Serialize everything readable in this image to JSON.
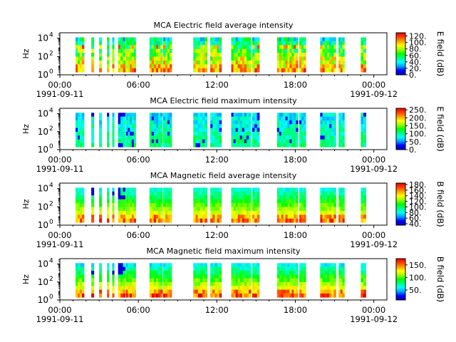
{
  "figure": {
    "x_tick_labels": [
      "00:00",
      "06:00",
      "12:00",
      "18:00",
      "00:00"
    ],
    "x_date_labels": [
      "1991-09-11",
      "1991-09-12"
    ],
    "y_axis_label": "Hz",
    "y_tick_labels": [
      "10",
      "10",
      "10"
    ],
    "y_tick_exponents": [
      "0",
      "2",
      "4"
    ]
  },
  "chart_data": [
    {
      "type": "heatmap",
      "title": "MCA  Electric field average intensity",
      "ylabel": "Hz",
      "xlim": [
        "1991-09-11 00:00",
        "1991-09-12 01:00"
      ],
      "ylim_exponent": [
        0,
        4.6
      ],
      "colorbar_label": "E field (dB)",
      "colorbar_ticks": [
        "120.",
        "100.",
        "80.",
        "60.",
        "40.",
        "20.",
        "0."
      ],
      "colorbar_range": [
        0,
        130
      ],
      "style": "avg"
    },
    {
      "type": "heatmap",
      "title": "MCA  Electric field maximum intensity",
      "ylabel": "Hz",
      "xlim": [
        "1991-09-11 00:00",
        "1991-09-12 01:00"
      ],
      "ylim_exponent": [
        0,
        4.6
      ],
      "colorbar_label": "E field (dB)",
      "colorbar_ticks": [
        "250.",
        "200.",
        "150.",
        "100.",
        "50.",
        "0."
      ],
      "colorbar_range": [
        0,
        260
      ],
      "style": "max"
    },
    {
      "type": "heatmap",
      "title": "MCA  Magnetic field average intensity",
      "ylabel": "Hz",
      "xlim": [
        "1991-09-11 00:00",
        "1991-09-12 01:00"
      ],
      "ylim_exponent": [
        0,
        4.6
      ],
      "colorbar_label": "B field (dB)",
      "colorbar_ticks": [
        "180.",
        "160.",
        "140.",
        "120.",
        "100.",
        "80.",
        "60.",
        "40."
      ],
      "colorbar_range": [
        35,
        185
      ],
      "style": "bavg"
    },
    {
      "type": "heatmap",
      "title": "MCA  Magnetic field maximum intensity",
      "ylabel": "Hz",
      "xlim": [
        "1991-09-11 00:00",
        "1991-09-12 01:00"
      ],
      "ylim_exponent": [
        0,
        4.6
      ],
      "colorbar_label": "B field (dB)",
      "colorbar_ticks": [
        "150.",
        "100.",
        "50."
      ],
      "colorbar_range": [
        10,
        175
      ],
      "style": "bmax"
    }
  ],
  "data_segments_hours": [
    [
      1.2,
      1.85
    ],
    [
      2.4,
      2.6
    ],
    [
      3.0,
      3.2
    ],
    [
      3.6,
      3.75
    ],
    [
      4.0,
      4.15
    ],
    [
      4.45,
      5.0
    ],
    [
      5.05,
      5.8
    ],
    [
      6.85,
      7.85
    ],
    [
      7.9,
      8.55
    ],
    [
      10.2,
      11.25
    ],
    [
      11.5,
      12.35
    ],
    [
      13.1,
      14.6
    ],
    [
      14.7,
      15.25
    ],
    [
      16.6,
      18.2
    ],
    [
      18.3,
      18.8
    ],
    [
      19.9,
      21.1
    ],
    [
      21.3,
      21.75
    ],
    [
      23.0,
      23.4
    ]
  ],
  "time_range_hours": [
    0,
    25
  ],
  "colormap": [
    "#0000b4",
    "#0000ff",
    "#00a0ff",
    "#00ffff",
    "#00ff80",
    "#00ff00",
    "#a0ff00",
    "#ffff00",
    "#ffa000",
    "#ff4000",
    "#e00000"
  ]
}
